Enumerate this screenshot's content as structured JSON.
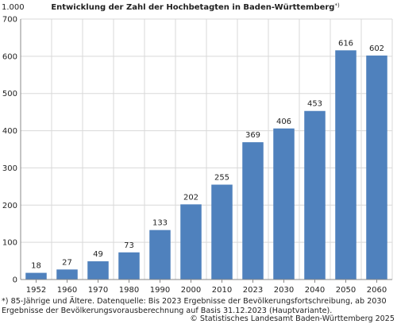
{
  "unit_label": "1.000",
  "title": "Entwicklung der Zahl der Hochbetagten in Baden-Württemberg",
  "title_marker": "*)",
  "footnote_lines": [
    "*) 85-Jährige und Ältere. Datenquelle: Bis 2023 Ergebnisse der Bevölkerungsfortschreibung, ab 2030",
    "Ergebnisse der Bevölkerungsvorausberechnung auf Basis 31.12.2023 (Hauptvariante)."
  ],
  "source": "© Statistisches Landesamt Baden-Württemberg 2025",
  "colors": {
    "bar": "#4f81bd",
    "grid": "#d9d9d9",
    "axis": "#888888",
    "text": "#1f1f1f"
  },
  "chart_data": {
    "type": "bar",
    "categories": [
      "1952",
      "1960",
      "1970",
      "1980",
      "1990",
      "2000",
      "2010",
      "2023",
      "2030",
      "2040",
      "2050",
      "2060"
    ],
    "values": [
      18,
      27,
      49,
      73,
      133,
      202,
      255,
      369,
      406,
      453,
      616,
      602
    ],
    "ylim": [
      0,
      700
    ],
    "yticks": [
      0,
      100,
      200,
      300,
      400,
      500,
      600,
      700
    ],
    "grid": "horizontal and vertical",
    "data_labels": true
  }
}
